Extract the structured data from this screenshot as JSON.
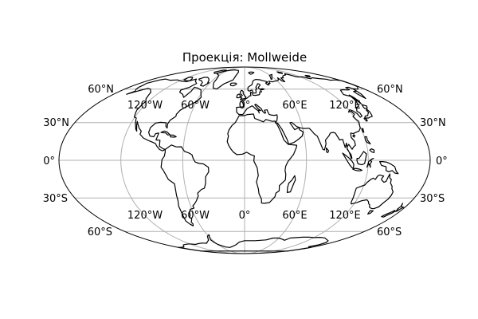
{
  "title": "Проекція: Mollweide",
  "projection": "mollweide",
  "gridlines": {
    "meridians_deg": [
      -120,
      -60,
      0,
      60,
      120
    ],
    "parallels_deg": [
      -60,
      -30,
      0,
      30,
      60
    ]
  },
  "lat_labels": {
    "n60": "60°N",
    "n30": "30°N",
    "eq": "0°",
    "s30": "30°S",
    "s60": "60°S"
  },
  "lon_labels": {
    "w120": "120°W",
    "w60": "60°W",
    "zero": "0°",
    "e60": "60°E",
    "e120": "120°E"
  },
  "colors": {
    "coastline": "#000000",
    "grid": "#b0b0b0",
    "background": "#ffffff"
  }
}
